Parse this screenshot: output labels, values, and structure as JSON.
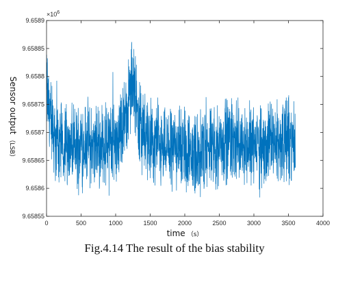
{
  "chart_data": {
    "type": "line",
    "title": "",
    "xlabel_main": "time",
    "xlabel_unit": "（s）",
    "ylabel_main": "Sensor output",
    "ylabel_unit": "（LSB）",
    "exponent_base": "×10",
    "exponent_power": "6",
    "xlim": [
      0,
      4000
    ],
    "ylim": [
      9.65855,
      9.6589
    ],
    "xticks": [
      0,
      500,
      1000,
      1500,
      2000,
      2500,
      3000,
      3500,
      4000
    ],
    "xtick_labels": [
      "0",
      "500",
      "1000",
      "1500",
      "2000",
      "2500",
      "3000",
      "3500",
      "4000"
    ],
    "yticks": [
      9.65855,
      9.6586,
      9.65865,
      9.6587,
      9.65875,
      9.6588,
      9.65885,
      9.6589
    ],
    "ytick_labels": [
      "9.65855",
      "9.6586",
      "9.65865",
      "9.6587",
      "9.65875",
      "9.6588",
      "9.65885",
      "9.6589"
    ],
    "grid": false,
    "series_color": "#0072BD",
    "series": [
      {
        "name": "",
        "x": [
          0,
          30,
          60,
          100,
          150,
          200,
          300,
          400,
          500,
          600,
          700,
          800,
          900,
          1000,
          1050,
          1100,
          1150,
          1200,
          1230,
          1260,
          1300,
          1350,
          1400,
          1500,
          1600,
          1700,
          1800,
          1900,
          2000,
          2100,
          2200,
          2300,
          2400,
          2500,
          2600,
          2700,
          2800,
          2900,
          3000,
          3100,
          3200,
          3300,
          3400,
          3500,
          3600
        ],
        "y": [
          9.65878,
          9.65875,
          9.65872,
          9.6587,
          9.65868,
          9.65868,
          9.65868,
          9.65867,
          9.65868,
          9.65868,
          9.65867,
          9.65868,
          9.65868,
          9.65869,
          9.6587,
          9.65871,
          9.65873,
          9.65876,
          9.65879,
          9.65878,
          9.65875,
          9.65872,
          9.6587,
          9.65868,
          9.65868,
          9.65867,
          9.65867,
          9.65868,
          9.65867,
          9.65866,
          9.65866,
          9.65867,
          9.65867,
          9.65868,
          9.65869,
          9.65869,
          9.65868,
          9.65868,
          9.65868,
          9.65867,
          9.65868,
          9.65868,
          9.65868,
          9.65869,
          9.65868
        ]
      }
    ],
    "caption": "Fig.4.14 The result of the bias stability"
  }
}
